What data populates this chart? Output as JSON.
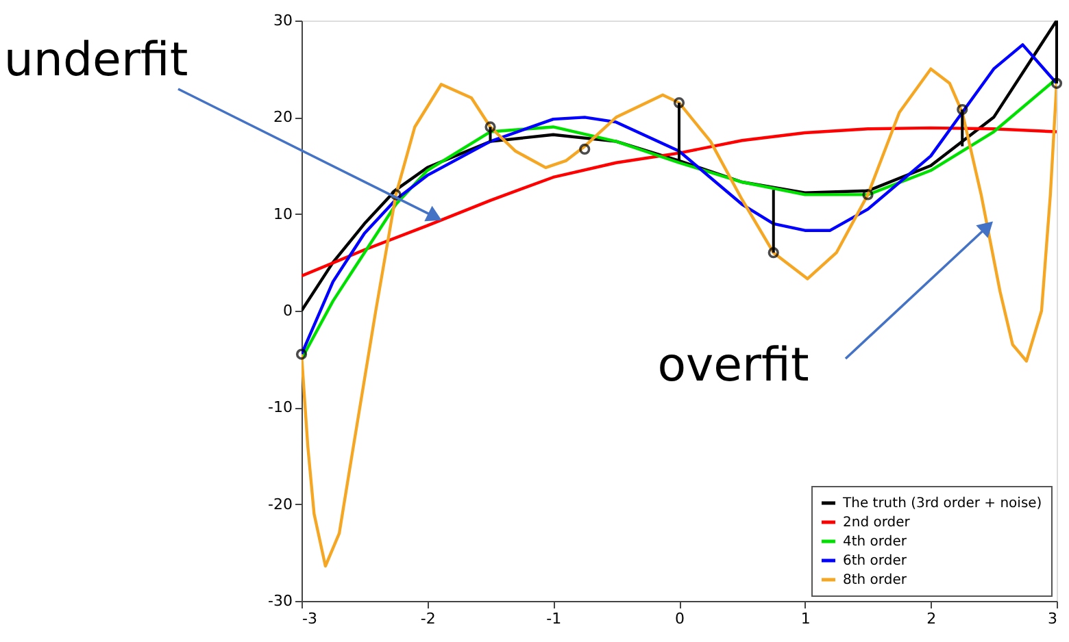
{
  "chart_data": {
    "type": "line",
    "xlim": [
      -3,
      3
    ],
    "ylim": [
      -30,
      30
    ],
    "xticks": [
      -3,
      -2,
      -1,
      0,
      1,
      2,
      3
    ],
    "yticks": [
      -30,
      -20,
      -10,
      0,
      10,
      20,
      30
    ],
    "grid": false,
    "legend": "bottom right",
    "line_style": "solid",
    "annotations": [
      {
        "text": "underfit",
        "x": -1.94,
        "y": 9.7
      },
      {
        "text": "overfit",
        "x": 2.45,
        "y": 8.7
      }
    ],
    "series": [
      {
        "name": "The truth (3rd order + noise)",
        "color": "#000000",
        "x": [
          -3,
          -2.75,
          -2.5,
          -2.25,
          -2,
          -1.5,
          -1,
          -0.5,
          0,
          0.5,
          1,
          1.5,
          2,
          2.5,
          3
        ],
        "values": [
          0,
          5,
          9,
          12.5,
          14.8,
          17.5,
          18.2,
          17.5,
          15.5,
          13.3,
          12.2,
          12.4,
          15,
          20,
          30
        ]
      },
      {
        "name": "2nd order",
        "color": "#ff0000",
        "x": [
          -3,
          -2.5,
          -2,
          -1.5,
          -1,
          -0.5,
          0,
          0.5,
          1,
          1.5,
          2,
          2.5,
          3
        ],
        "values": [
          3.6,
          6.3,
          8.8,
          11.4,
          13.8,
          15.3,
          16.3,
          17.6,
          18.4,
          18.8,
          18.9,
          18.8,
          18.5
        ]
      },
      {
        "name": "4th order",
        "color": "#00e000",
        "x": [
          -3,
          -2.75,
          -2.5,
          -2.25,
          -2,
          -1.5,
          -1,
          -0.5,
          0,
          0.5,
          1,
          1.5,
          2,
          2.5,
          3
        ],
        "values": [
          -5,
          1,
          6,
          11,
          14.5,
          18.5,
          19,
          17.5,
          15.3,
          13.3,
          12,
          12,
          14.5,
          18.5,
          24
        ]
      },
      {
        "name": "6th order",
        "color": "#0000ff",
        "x": [
          -3,
          -2.75,
          -2.5,
          -2.25,
          -2,
          -1.5,
          -1,
          -0.75,
          -0.5,
          0,
          0.5,
          0.75,
          1,
          1.2,
          1.5,
          2,
          2.25,
          2.5,
          2.73,
          3
        ],
        "values": [
          -4.5,
          3,
          8,
          11.5,
          14,
          17.5,
          19.8,
          20,
          19.5,
          16.5,
          11,
          9,
          8.3,
          8.3,
          10.5,
          16,
          20.5,
          25,
          27.5,
          23.5
        ]
      },
      {
        "name": "8th order",
        "color": "#f5a623",
        "x": [
          -3,
          -2.95,
          -2.9,
          -2.81,
          -2.7,
          -2.6,
          -2.41,
          -2.25,
          -2.1,
          -1.89,
          -1.65,
          -1.5,
          -1.3,
          -1.06,
          -0.9,
          -0.75,
          -0.5,
          -0.13,
          0,
          0.25,
          0.5,
          0.75,
          1.02,
          1.25,
          1.5,
          1.75,
          2,
          2.15,
          2.25,
          2.4,
          2.55,
          2.65,
          2.76,
          2.88,
          2.95,
          3
        ],
        "values": [
          -4.5,
          -14,
          -21,
          -26.4,
          -23,
          -15,
          0,
          12,
          19,
          23.4,
          22,
          19,
          16.5,
          14.8,
          15.5,
          17,
          20,
          22.3,
          21.5,
          17.5,
          11.5,
          6,
          3.3,
          6,
          12,
          20.5,
          25,
          23.5,
          20.5,
          12,
          2,
          -3.5,
          -5.2,
          0,
          12,
          23.5
        ]
      },
      {
        "type": "scatter",
        "marker": "circle",
        "color": "#000000",
        "x": [
          -3,
          -2.25,
          -1.5,
          -0.75,
          0,
          0.75,
          1.5,
          2.25,
          3
        ],
        "values": [
          -4.5,
          12,
          19,
          16.7,
          21.5,
          6,
          12,
          20.8,
          23.5
        ],
        "errors": [
          null,
          null,
          [
            17.5,
            19
          ],
          null,
          [
            15.5,
            21.5
          ],
          [
            6,
            12.5
          ],
          null,
          [
            17,
            20.8
          ],
          [
            23.5,
            30
          ]
        ]
      }
    ]
  }
}
